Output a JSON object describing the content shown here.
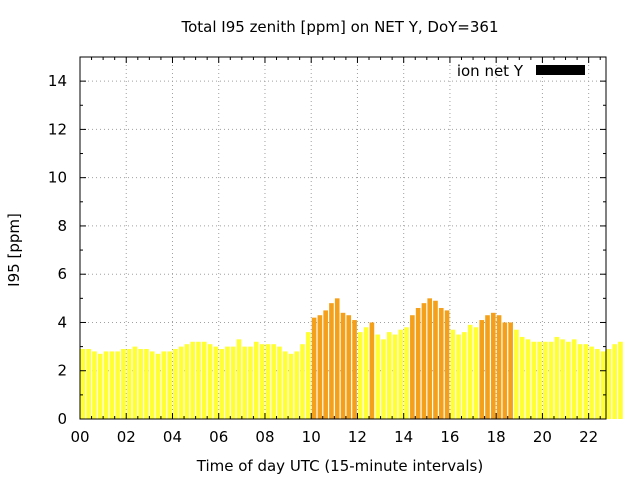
{
  "chart_data": {
    "type": "bar",
    "title": "Total I95 zenith [ppm] on NET Y, DoY=361",
    "xlabel": "Time of day UTC (15-minute intervals)",
    "ylabel": "I95 [ppm]",
    "xlim": [
      0,
      22.75
    ],
    "ylim": [
      0,
      15
    ],
    "x_ticks": [
      0,
      2,
      4,
      6,
      8,
      10,
      12,
      14,
      16,
      18,
      20,
      22
    ],
    "x_tick_labels": [
      "00",
      "02",
      "04",
      "06",
      "08",
      "10",
      "12",
      "14",
      "16",
      "18",
      "20",
      "22"
    ],
    "y_ticks": [
      0,
      2,
      4,
      6,
      8,
      10,
      12,
      14
    ],
    "y_tick_labels": [
      "0",
      "2",
      "4",
      "6",
      "8",
      "10",
      "12",
      "14"
    ],
    "bar_interval_hours": 0.25,
    "grid": true,
    "legend": {
      "position": "top-right",
      "entries": [
        {
          "label": "ion net Y",
          "color": "#000000"
        }
      ]
    },
    "colors": {
      "low": "#ffff33",
      "high": "#f4a01b",
      "legend_swatch": "#000000"
    },
    "color_threshold": 4.0,
    "series": [
      {
        "x_start": 0,
        "values": [
          2.9,
          2.9,
          2.8,
          2.7,
          2.8,
          2.8,
          2.8,
          2.9,
          2.9,
          3.0,
          2.9,
          2.9,
          2.8,
          2.7,
          2.8,
          2.8,
          2.9,
          3.0,
          3.1,
          3.2,
          3.2,
          3.2,
          3.1,
          3.0,
          2.9,
          3.0,
          3.0,
          3.3,
          3.0,
          3.0,
          3.2,
          3.1,
          3.1,
          3.1,
          3.0,
          2.8,
          2.7,
          2.8,
          3.1,
          3.6,
          4.2,
          4.3,
          4.5,
          4.8,
          5.0,
          4.4,
          4.3,
          4.1,
          3.6,
          3.8,
          4.0,
          3.5,
          3.3,
          3.6,
          3.5,
          3.7,
          3.8,
          4.3,
          4.6,
          4.8,
          5.0,
          4.9,
          4.6,
          4.5,
          3.7,
          3.5,
          3.6,
          3.9,
          3.8,
          4.1,
          4.3,
          4.4,
          4.3,
          4.0,
          4.0,
          3.7,
          3.4,
          3.3,
          3.2,
          3.2,
          3.2,
          3.2,
          3.4,
          3.3,
          3.2,
          3.3,
          3.1,
          3.1,
          3.0,
          2.9,
          2.8,
          2.9,
          3.1,
          3.2
        ]
      }
    ]
  }
}
